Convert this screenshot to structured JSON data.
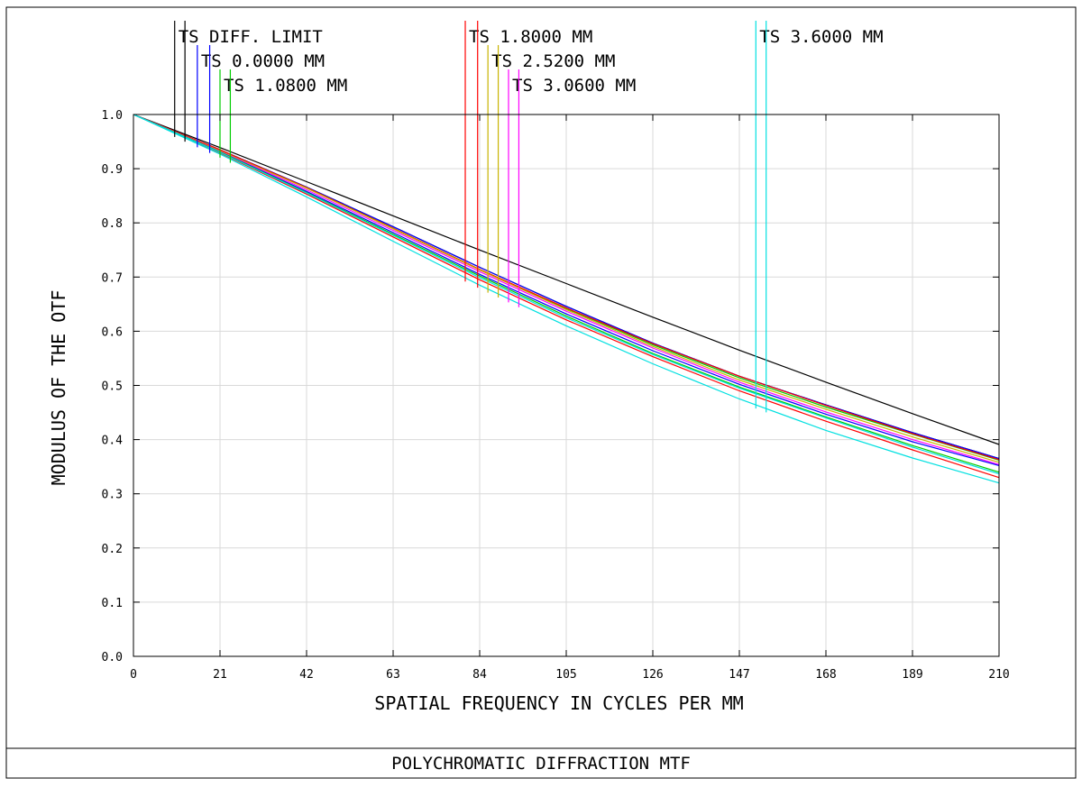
{
  "chart_data": {
    "type": "line",
    "title": "POLYCHROMATIC DIFFRACTION MTF",
    "xlabel": "SPATIAL FREQUENCY IN CYCLES PER MM",
    "ylabel": "MODULUS OF THE OTF",
    "xlim": [
      0,
      210
    ],
    "ylim": [
      0,
      1.0
    ],
    "xticks": [
      "0",
      "21",
      "42",
      "63",
      "84",
      "105",
      "126",
      "147",
      "168",
      "189",
      "210"
    ],
    "yticks": [
      "0.0",
      "0.1",
      "0.2",
      "0.3",
      "0.4",
      "0.5",
      "0.6",
      "0.7",
      "0.8",
      "0.9",
      "1.0"
    ],
    "grid": true,
    "legend_placement": "top",
    "legend": [
      {
        "label": "TS DIFF. LIMIT",
        "markers": [
          {
            "x": 10,
            "color": "#000000"
          },
          {
            "x": 12.5,
            "color": "#000000"
          }
        ]
      },
      {
        "label": "TS 0.0000 MM",
        "markers": [
          {
            "x": 15.5,
            "color": "#0000ff"
          },
          {
            "x": 18.5,
            "color": "#0000ff"
          }
        ]
      },
      {
        "label": "TS 1.0800 MM",
        "markers": [
          {
            "x": 21,
            "color": "#00cc00"
          },
          {
            "x": 23.5,
            "color": "#00cc00"
          }
        ]
      },
      {
        "label": "TS 1.8000 MM",
        "markers": [
          {
            "x": 80.5,
            "color": "#ff0000"
          },
          {
            "x": 83.5,
            "color": "#ff0000"
          }
        ]
      },
      {
        "label": "TS 2.5200 MM",
        "markers": [
          {
            "x": 86,
            "color": "#c8b400"
          },
          {
            "x": 88.5,
            "color": "#c8b400"
          }
        ]
      },
      {
        "label": "TS 3.0600 MM",
        "markers": [
          {
            "x": 91,
            "color": "#ff00ff"
          },
          {
            "x": 93.5,
            "color": "#ff00ff"
          }
        ]
      },
      {
        "label": "TS 3.6000 MM",
        "markers": [
          {
            "x": 151,
            "color": "#00e0e0"
          },
          {
            "x": 153.5,
            "color": "#00e0e0"
          }
        ]
      }
    ],
    "x": [
      0,
      21,
      42,
      63,
      84,
      105,
      126,
      147,
      168,
      189,
      210
    ],
    "series": [
      {
        "color": "#000000",
        "values": [
          1.0,
          0.939,
          0.876,
          0.813,
          0.75,
          0.688,
          0.626,
          0.565,
          0.506,
          0.448,
          0.391
        ]
      },
      {
        "color": "#000000",
        "values": [
          1.0,
          0.935,
          0.866,
          0.793,
          0.718,
          0.646,
          0.578,
          0.517,
          0.464,
          0.413,
          0.365
        ]
      },
      {
        "color": "#0000ff",
        "values": [
          1.0,
          0.935,
          0.866,
          0.793,
          0.718,
          0.646,
          0.578,
          0.517,
          0.464,
          0.413,
          0.365
        ]
      },
      {
        "color": "#00cc00",
        "values": [
          1.0,
          0.934,
          0.865,
          0.79,
          0.714,
          0.642,
          0.575,
          0.514,
          0.46,
          0.41,
          0.362
        ]
      },
      {
        "color": "#ff0000",
        "values": [
          1.0,
          0.935,
          0.865,
          0.79,
          0.714,
          0.643,
          0.577,
          0.517,
          0.463,
          0.411,
          0.363
        ]
      },
      {
        "color": "#c8b400",
        "values": [
          1.0,
          0.933,
          0.864,
          0.789,
          0.713,
          0.64,
          0.572,
          0.51,
          0.456,
          0.405,
          0.358
        ]
      },
      {
        "color": "#ff00ff",
        "values": [
          1.0,
          0.932,
          0.861,
          0.786,
          0.71,
          0.637,
          0.569,
          0.506,
          0.451,
          0.4,
          0.354
        ]
      },
      {
        "color": "#0000ff",
        "values": [
          1.0,
          0.931,
          0.858,
          0.782,
          0.705,
          0.632,
          0.564,
          0.502,
          0.447,
          0.396,
          0.352
        ]
      },
      {
        "color": "#00cc00",
        "values": [
          1.0,
          0.931,
          0.856,
          0.779,
          0.702,
          0.628,
          0.559,
          0.497,
          0.442,
          0.389,
          0.34
        ]
      },
      {
        "color": "#ff0000",
        "values": [
          1.0,
          0.929,
          0.853,
          0.774,
          0.695,
          0.621,
          0.553,
          0.49,
          0.434,
          0.381,
          0.33
        ]
      },
      {
        "color": "#00e0e0",
        "values": [
          1.0,
          0.93,
          0.855,
          0.777,
          0.699,
          0.625,
          0.557,
          0.495,
          0.44,
          0.386,
          0.337
        ]
      },
      {
        "color": "#00e0e0",
        "values": [
          1.0,
          0.927,
          0.848,
          0.766,
          0.685,
          0.61,
          0.54,
          0.475,
          0.417,
          0.366,
          0.32
        ]
      }
    ]
  }
}
